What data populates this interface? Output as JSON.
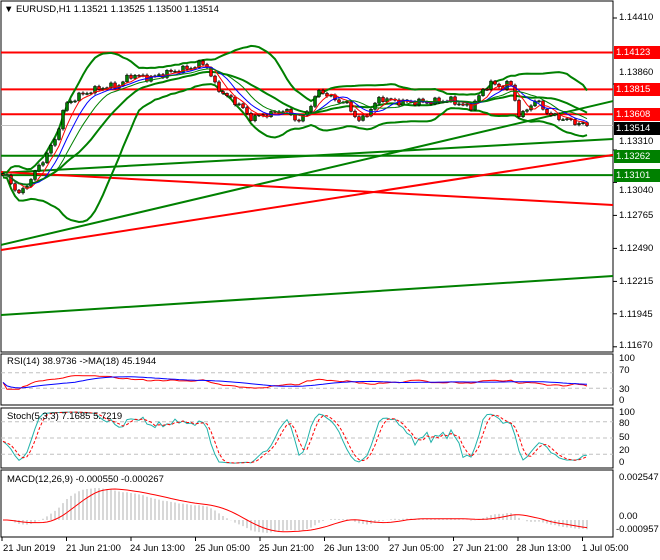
{
  "header": {
    "symbol": "EURUSD,H1",
    "ohlc": "1.13521 1.13525 1.13500 1.13514",
    "menu_icon": "triangle-down-icon"
  },
  "price_axis": [
    "1.14410",
    "1.13860",
    "1.13310",
    "1.13040",
    "1.12765",
    "1.12490",
    "1.12215",
    "1.11945",
    "1.11670"
  ],
  "levels": [
    {
      "price": "1.14123",
      "color": "#ff0000"
    },
    {
      "price": "1.13815",
      "color": "#ff0000"
    },
    {
      "price": "1.13608",
      "color": "#ff0000"
    },
    {
      "price": "1.13514",
      "color": "#000000",
      "current": true
    },
    {
      "price": "1.13262",
      "color": "#008000"
    },
    {
      "price": "1.13101",
      "color": "#008000"
    }
  ],
  "trend_lines": [
    {
      "color": "#008000",
      "start_price": 1.12519,
      "end_price": 1.13718
    },
    {
      "color": "#008000",
      "start_price": 1.13119,
      "end_price": 1.13402
    },
    {
      "color": "#ff0000",
      "start_price": 1.12477,
      "end_price": 1.13269
    },
    {
      "color": "#ff0000",
      "start_price": 1.13127,
      "end_price": 1.12852
    },
    {
      "color": "#008000",
      "start_price": 1.11935,
      "end_price": 1.1226
    }
  ],
  "closes": [
    1.13102,
    1.12935,
    1.13185,
    1.13393,
    1.13685,
    1.13768,
    1.13827,
    1.13852,
    1.13935,
    1.1391,
    1.1396,
    1.13993,
    1.14043,
    1.13852,
    1.13768,
    1.13685,
    1.13577,
    1.13602,
    1.13643,
    1.13543,
    1.1381,
    1.13727,
    1.1371,
    1.13543,
    1.13743,
    1.1371,
    1.1371,
    1.1371,
    1.13727,
    1.1366,
    1.13877,
    1.13827,
    1.13877,
    1.13577,
    1.13727,
    1.13685,
    1.13602,
    1.13518
  ],
  "indicators": {
    "rsi": {
      "label": "RSI(14) 38.9736  ->MA(18) 45.1944",
      "axis": [
        "100",
        "70",
        "30",
        "0"
      ]
    },
    "stoch": {
      "label": "Stoch(5,3,3) 7.1685 5.7219",
      "axis": [
        "100",
        "80",
        "50",
        "20",
        "0"
      ]
    },
    "macd": {
      "label": "MACD(12,26,9) -0.000550 -0.000267",
      "axis": [
        "0.002547",
        "0.00",
        "-0.000957"
      ]
    }
  },
  "time_axis": [
    "21 Jun 2019",
    "21 Jun 21:00",
    "24 Jun 13:00",
    "25 Jun 05:00",
    "25 Jun 21:00",
    "26 Jun 13:00",
    "27 Jun 05:00",
    "27 Jun 21:00",
    "28 Jun 13:00",
    "1 Jul 05:00"
  ],
  "colors": {
    "bull": "#008000",
    "bear": "#ff0000",
    "band": "#008000",
    "ma_fast": "#ff0000",
    "ma_slow": "#0000ff",
    "stoch_main": "#20b2aa"
  }
}
